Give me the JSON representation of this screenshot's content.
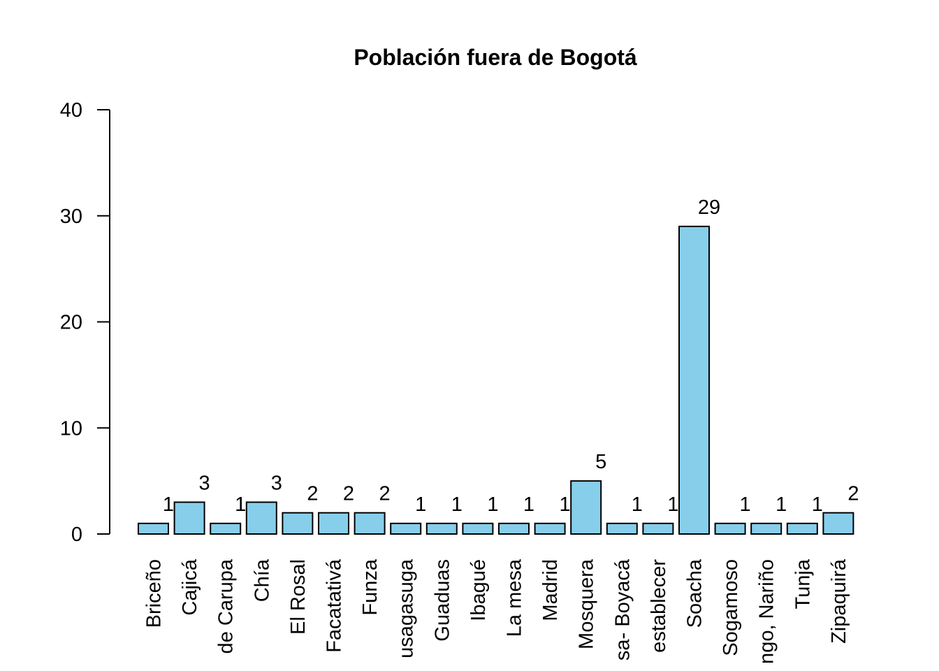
{
  "chart_data": {
    "type": "bar",
    "title": "Población fuera de Bogotá",
    "xlabel": "",
    "ylabel": "",
    "ylim": [
      0,
      40
    ],
    "yticks": [
      0,
      10,
      20,
      30,
      40
    ],
    "categories": [
      "Briceño",
      "Cajicá",
      "de Carupa",
      "Chía",
      "El Rosal",
      "Facatativá",
      "Funza",
      "usagasuga",
      "Guaduas",
      "Ibagué",
      "La mesa",
      "Madrid",
      "Mosquera",
      "sa- Boyacá",
      "establecer",
      "Soacha",
      "Sogamoso",
      "ngo, Nariño",
      "Tunja",
      "Zipaquirá"
    ],
    "values": [
      1,
      3,
      1,
      3,
      2,
      2,
      2,
      1,
      1,
      1,
      1,
      1,
      5,
      1,
      1,
      29,
      1,
      1,
      1,
      2
    ],
    "data_labels": [
      "1",
      "3",
      "1",
      "3",
      "2",
      "2",
      "2",
      "1",
      "1",
      "1",
      "1",
      "1",
      "5",
      "1",
      "1",
      "29",
      "1",
      "1",
      "1",
      "2"
    ],
    "bar_color": "#87CEEB",
    "bar_border": "#000000",
    "grid": false,
    "legend": "none"
  }
}
